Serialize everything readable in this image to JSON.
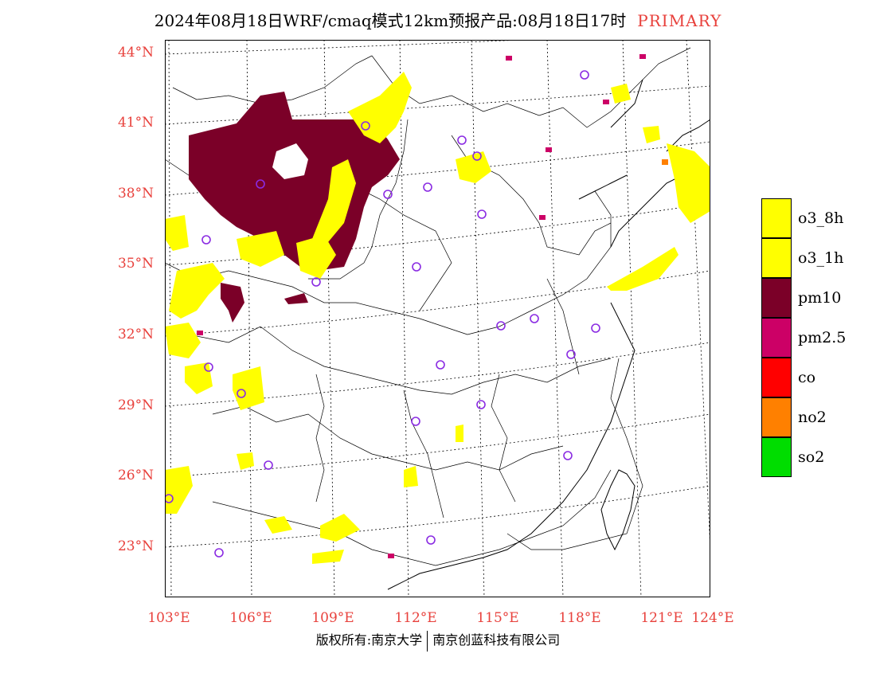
{
  "title": {
    "main": "2024年08月18日WRF/cmaq模式12km预报产品:08月18日17时",
    "tag": "PRIMARY"
  },
  "axes": {
    "lat_labels": [
      "44°N",
      "41°N",
      "38°N",
      "35°N",
      "32°N",
      "29°N",
      "26°N",
      "23°N"
    ],
    "lon_labels": [
      "103°E",
      "106°E",
      "109°E",
      "112°E",
      "115°E",
      "118°E",
      "121°E",
      "124°E"
    ],
    "lat_values": [
      44,
      41,
      38,
      35,
      32,
      29,
      26,
      23
    ],
    "lon_values": [
      103,
      106,
      109,
      112,
      115,
      118,
      121,
      124
    ]
  },
  "legend": [
    {
      "label": "o3_8h",
      "color": "#ffff00"
    },
    {
      "label": "o3_1h",
      "color": "#ffff00"
    },
    {
      "label": "pm10",
      "color": "#7b0028"
    },
    {
      "label": "pm2.5",
      "color": "#cc0066"
    },
    {
      "label": "co",
      "color": "#ff0000"
    },
    {
      "label": "no2",
      "color": "#ff8000"
    },
    {
      "label": "so2",
      "color": "#00dd00"
    }
  ],
  "stations_icon": "circle-marker-icon",
  "colors": {
    "label_red": "#e8413c",
    "o3": "#ffff00",
    "pm10": "#7b0028",
    "pm25": "#cc0066",
    "station": "#8a2be2"
  },
  "footer": {
    "left": "版权所有:南京大学",
    "right": "南京创蓝科技有限公司"
  }
}
